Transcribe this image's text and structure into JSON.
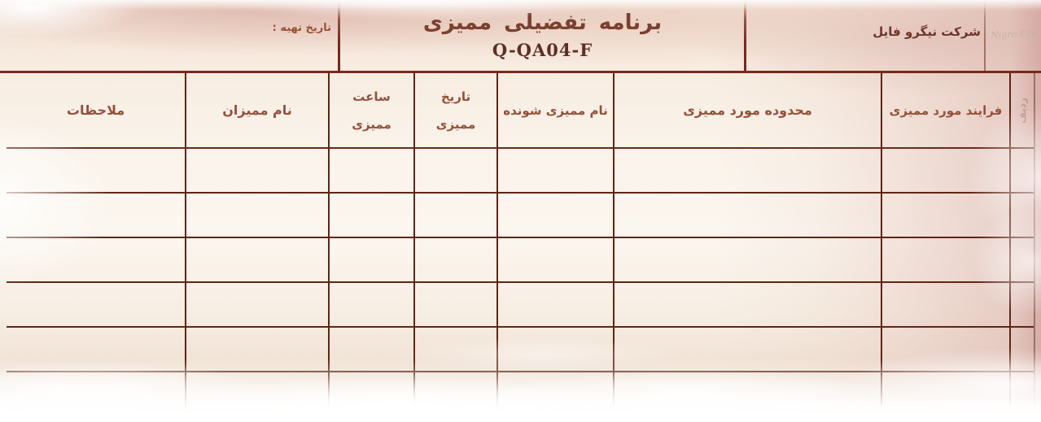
{
  "header": {
    "company": "شرکت نیگرو فایل",
    "title": "برنامه تفضیلی ممیزی",
    "doc_code": "Q-QA04-F",
    "prep_date_label": "تاریخ تهیه :",
    "watermark": "Nigro File"
  },
  "table": {
    "columns": {
      "radif": "ردیف",
      "process": "فرایند مورد ممیزی",
      "scope": "محدوده مورد ممیزی",
      "auditee": "نام ممیزی شونده",
      "date1": "تاریخ",
      "date2": "ممیزی",
      "time1": "ساعت",
      "time2": "ممیزی",
      "auditors": "نام ممیزان",
      "remarks": "ملاحظات"
    },
    "row_count": 6
  },
  "colors": {
    "grid_line": "#602515",
    "header_line": "#76291a",
    "heading_text": "#95503a",
    "title_text": "#7b4030",
    "code_text": "#5c2f26",
    "wash_pink": "#e3c3b8"
  }
}
